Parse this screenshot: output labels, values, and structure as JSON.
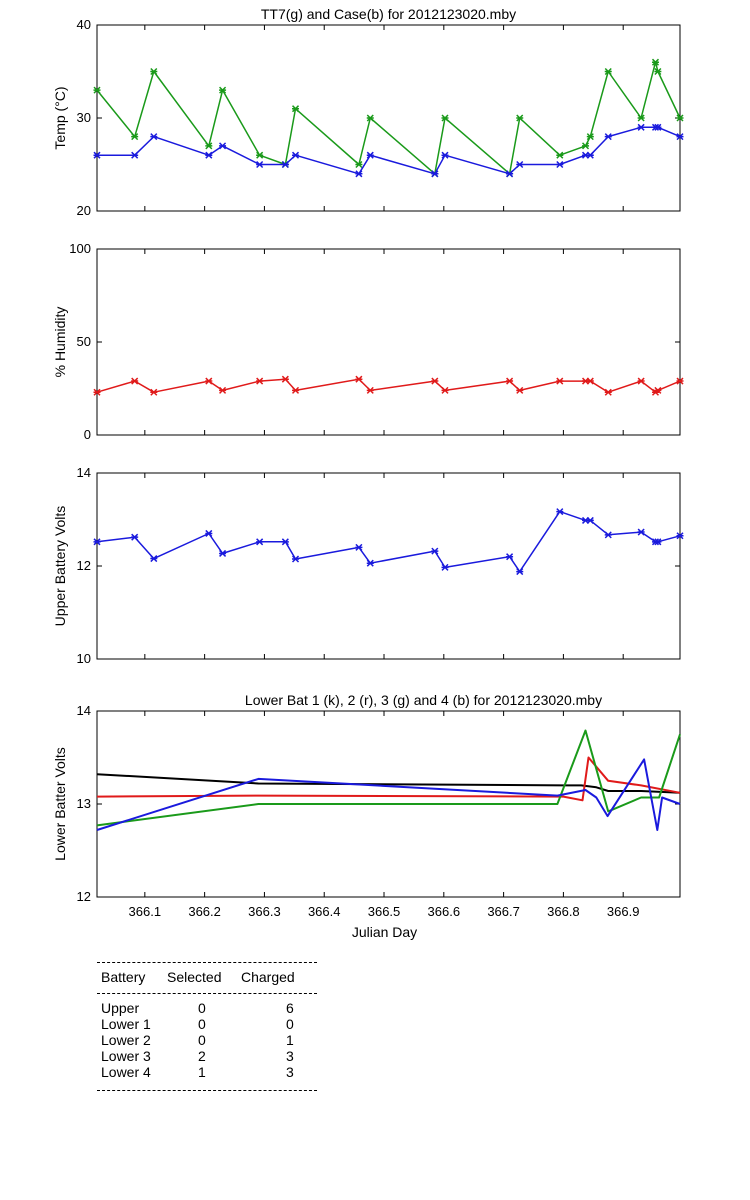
{
  "colors": {
    "green": "#1a9a1a",
    "blue": "#1a1add",
    "red": "#e01a1a",
    "black": "#000000"
  },
  "chart_data": [
    {
      "type": "line",
      "title": "TT7(g) and Case(b) for 2012123020.mby",
      "xlabel": "",
      "ylabel": "Temp  (°C)",
      "xlim": [
        366.02,
        366.995
      ],
      "ylim": [
        20,
        40
      ],
      "yticks": [
        "20",
        "30",
        "40"
      ],
      "series": [
        {
          "name": "TT7",
          "color": "#1a9a1a",
          "marker": true,
          "x": [
            366.02,
            366.083,
            366.115,
            366.207,
            366.23,
            366.292,
            366.335,
            366.352,
            366.458,
            366.477,
            366.585,
            366.602,
            366.71,
            366.727,
            366.794,
            366.837,
            366.845,
            366.875,
            366.93,
            366.954,
            366.958,
            366.995
          ],
          "y": [
            33,
            28,
            35,
            27,
            33,
            26,
            25,
            31,
            25,
            30,
            24,
            30,
            24,
            30,
            26,
            27,
            28,
            35,
            30,
            36,
            35,
            30
          ]
        },
        {
          "name": "Case",
          "color": "#1a1add",
          "marker": true,
          "x": [
            366.02,
            366.083,
            366.115,
            366.207,
            366.23,
            366.292,
            366.335,
            366.352,
            366.458,
            366.477,
            366.585,
            366.602,
            366.71,
            366.727,
            366.794,
            366.837,
            366.845,
            366.875,
            366.93,
            366.954,
            366.958,
            366.995
          ],
          "y": [
            26,
            26,
            28,
            26,
            27,
            25,
            25,
            26,
            24,
            26,
            24,
            26,
            24,
            25,
            25,
            26,
            26,
            28,
            29,
            29,
            29,
            28
          ]
        }
      ]
    },
    {
      "type": "line",
      "title": "",
      "xlabel": "",
      "ylabel": "% Humidity",
      "xlim": [
        366.02,
        366.995
      ],
      "ylim": [
        0,
        100
      ],
      "yticks": [
        "0",
        "50",
        "100"
      ],
      "series": [
        {
          "name": "Humidity",
          "color": "#e01a1a",
          "marker": true,
          "x": [
            366.02,
            366.083,
            366.115,
            366.207,
            366.23,
            366.292,
            366.335,
            366.352,
            366.458,
            366.477,
            366.585,
            366.602,
            366.71,
            366.727,
            366.794,
            366.837,
            366.845,
            366.875,
            366.93,
            366.954,
            366.958,
            366.995
          ],
          "y": [
            23,
            29,
            23,
            29,
            24,
            29,
            30,
            24,
            30,
            24,
            29,
            24,
            29,
            24,
            29,
            29,
            29,
            23,
            29,
            23,
            24,
            29
          ]
        }
      ]
    },
    {
      "type": "line",
      "title": "",
      "xlabel": "",
      "ylabel": "Upper Battery Volts",
      "xlim": [
        366.02,
        366.995
      ],
      "ylim": [
        10,
        14
      ],
      "yticks": [
        "10",
        "12",
        "14"
      ],
      "series": [
        {
          "name": "Upper",
          "color": "#1a1add",
          "marker": true,
          "x": [
            366.02,
            366.083,
            366.115,
            366.207,
            366.23,
            366.292,
            366.335,
            366.352,
            366.458,
            366.477,
            366.585,
            366.602,
            366.71,
            366.727,
            366.794,
            366.837,
            366.845,
            366.875,
            366.93,
            366.954,
            366.958,
            366.995
          ],
          "y": [
            12.52,
            12.62,
            12.16,
            12.7,
            12.27,
            12.52,
            12.52,
            12.15,
            12.4,
            12.06,
            12.32,
            11.97,
            12.2,
            11.88,
            13.17,
            12.98,
            12.98,
            12.67,
            12.73,
            12.52,
            12.52,
            12.65
          ]
        }
      ]
    },
    {
      "type": "line",
      "title": "Lower Bat 1 (k), 2 (r), 3 (g) and 4 (b) for 2012123020.mby",
      "xlabel": "Julian Day",
      "ylabel": "Lower Batter Volts",
      "xlim": [
        366.02,
        366.995
      ],
      "ylim": [
        12,
        14
      ],
      "yticks": [
        "12",
        "13",
        "14"
      ],
      "xticks": [
        "366.1",
        "366.2",
        "366.3",
        "366.4",
        "366.5",
        "366.6",
        "366.7",
        "366.8",
        "366.9"
      ],
      "series": [
        {
          "name": "Lower 1",
          "color": "#000000",
          "marker": false,
          "x": [
            366.02,
            366.29,
            366.8,
            366.83,
            366.855,
            366.875,
            366.93,
            366.995
          ],
          "y": [
            13.32,
            13.22,
            13.2,
            13.2,
            13.18,
            13.14,
            13.14,
            13.12
          ]
        },
        {
          "name": "Lower 2",
          "color": "#e01a1a",
          "marker": false,
          "x": [
            366.02,
            366.29,
            366.8,
            366.832,
            366.842,
            366.875,
            366.93,
            366.995
          ],
          "y": [
            13.08,
            13.09,
            13.08,
            13.04,
            13.5,
            13.25,
            13.2,
            13.12
          ]
        },
        {
          "name": "Lower 3",
          "color": "#1a9a1a",
          "marker": false,
          "x": [
            366.02,
            366.29,
            366.79,
            366.837,
            366.875,
            366.93,
            366.96,
            366.995
          ],
          "y": [
            12.77,
            13.0,
            13.0,
            13.79,
            12.92,
            13.07,
            13.07,
            13.75
          ]
        },
        {
          "name": "Lower 4",
          "color": "#1a1add",
          "marker": false,
          "x": [
            366.02,
            366.29,
            366.79,
            366.837,
            366.855,
            366.874,
            366.935,
            366.957,
            366.965,
            366.995
          ],
          "y": [
            12.72,
            13.27,
            13.09,
            13.15,
            13.07,
            12.87,
            13.48,
            12.72,
            13.07,
            13.0
          ]
        }
      ]
    }
  ],
  "table": {
    "headers": [
      "Battery",
      "Selected",
      "Charged"
    ],
    "rows": [
      {
        "battery": "Upper",
        "selected": "0",
        "charged": "6"
      },
      {
        "battery": "Lower 1",
        "selected": "0",
        "charged": "0"
      },
      {
        "battery": "Lower 2",
        "selected": "0",
        "charged": "1"
      },
      {
        "battery": "Lower 3",
        "selected": "2",
        "charged": "3"
      },
      {
        "battery": "Lower 4",
        "selected": "1",
        "charged": "3"
      }
    ]
  }
}
